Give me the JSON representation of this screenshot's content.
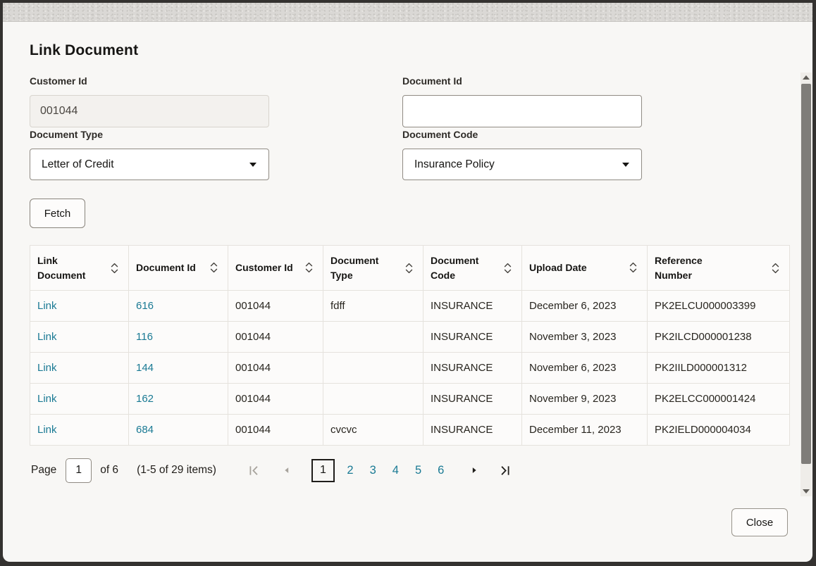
{
  "dialog": {
    "title": "Link Document",
    "fetch_label": "Fetch",
    "close_label": "Close"
  },
  "form": {
    "customer_id": {
      "label": "Customer Id",
      "value": "001044"
    },
    "document_id": {
      "label": "Document Id",
      "value": "",
      "placeholder": ""
    },
    "document_type": {
      "label": "Document Type",
      "selected": "Letter of Credit"
    },
    "document_code": {
      "label": "Document Code",
      "selected": "Insurance Policy"
    }
  },
  "table": {
    "columns": [
      "Link Document",
      "Document Id",
      "Customer Id",
      "Document Type",
      "Document Code",
      "Upload Date",
      "Reference Number"
    ],
    "rows": [
      {
        "link": "Link",
        "document_id": "616",
        "customer_id": "001044",
        "document_type": "fdff",
        "document_code": "INSURANCE",
        "upload_date": "December 6, 2023",
        "reference_number": "PK2ELCU000003399"
      },
      {
        "link": "Link",
        "document_id": "116",
        "customer_id": "001044",
        "document_type": "",
        "document_code": "INSURANCE",
        "upload_date": "November 3, 2023",
        "reference_number": "PK2ILCD000001238"
      },
      {
        "link": "Link",
        "document_id": "144",
        "customer_id": "001044",
        "document_type": "",
        "document_code": "INSURANCE",
        "upload_date": "November 6, 2023",
        "reference_number": "PK2IILD000001312"
      },
      {
        "link": "Link",
        "document_id": "162",
        "customer_id": "001044",
        "document_type": "",
        "document_code": "INSURANCE",
        "upload_date": "November 9, 2023",
        "reference_number": "PK2ELCC000001424"
      },
      {
        "link": "Link",
        "document_id": "684",
        "customer_id": "001044",
        "document_type": "cvcvc",
        "document_code": "INSURANCE",
        "upload_date": "December 11, 2023",
        "reference_number": "PK2IELD000004034"
      }
    ]
  },
  "pagination": {
    "page_label": "Page",
    "page_input_value": "1",
    "of_text": "of 6",
    "items_text": "(1-5 of 29 items)",
    "pages": [
      "1",
      "2",
      "3",
      "4",
      "5",
      "6"
    ],
    "current_page": "1",
    "first_enabled": false,
    "prev_enabled": false,
    "next_enabled": true,
    "last_enabled": true
  },
  "icons": {
    "sort": "chevron-up-down",
    "select_caret": "caret-down",
    "first_page": "bar-chevron-left",
    "previous_page": "triangle-left",
    "next_page": "triangle-right",
    "last_page": "chevron-right-bar",
    "scroll_up": "triangle-up",
    "scroll_down": "triangle-down"
  },
  "colors": {
    "link": "#1a7a94",
    "text": "#161513",
    "modal_bg": "#f8f7f5",
    "frame": "#343230",
    "disabled_icon": "#a7a39c",
    "enabled_icon": "#1f1d1a"
  }
}
